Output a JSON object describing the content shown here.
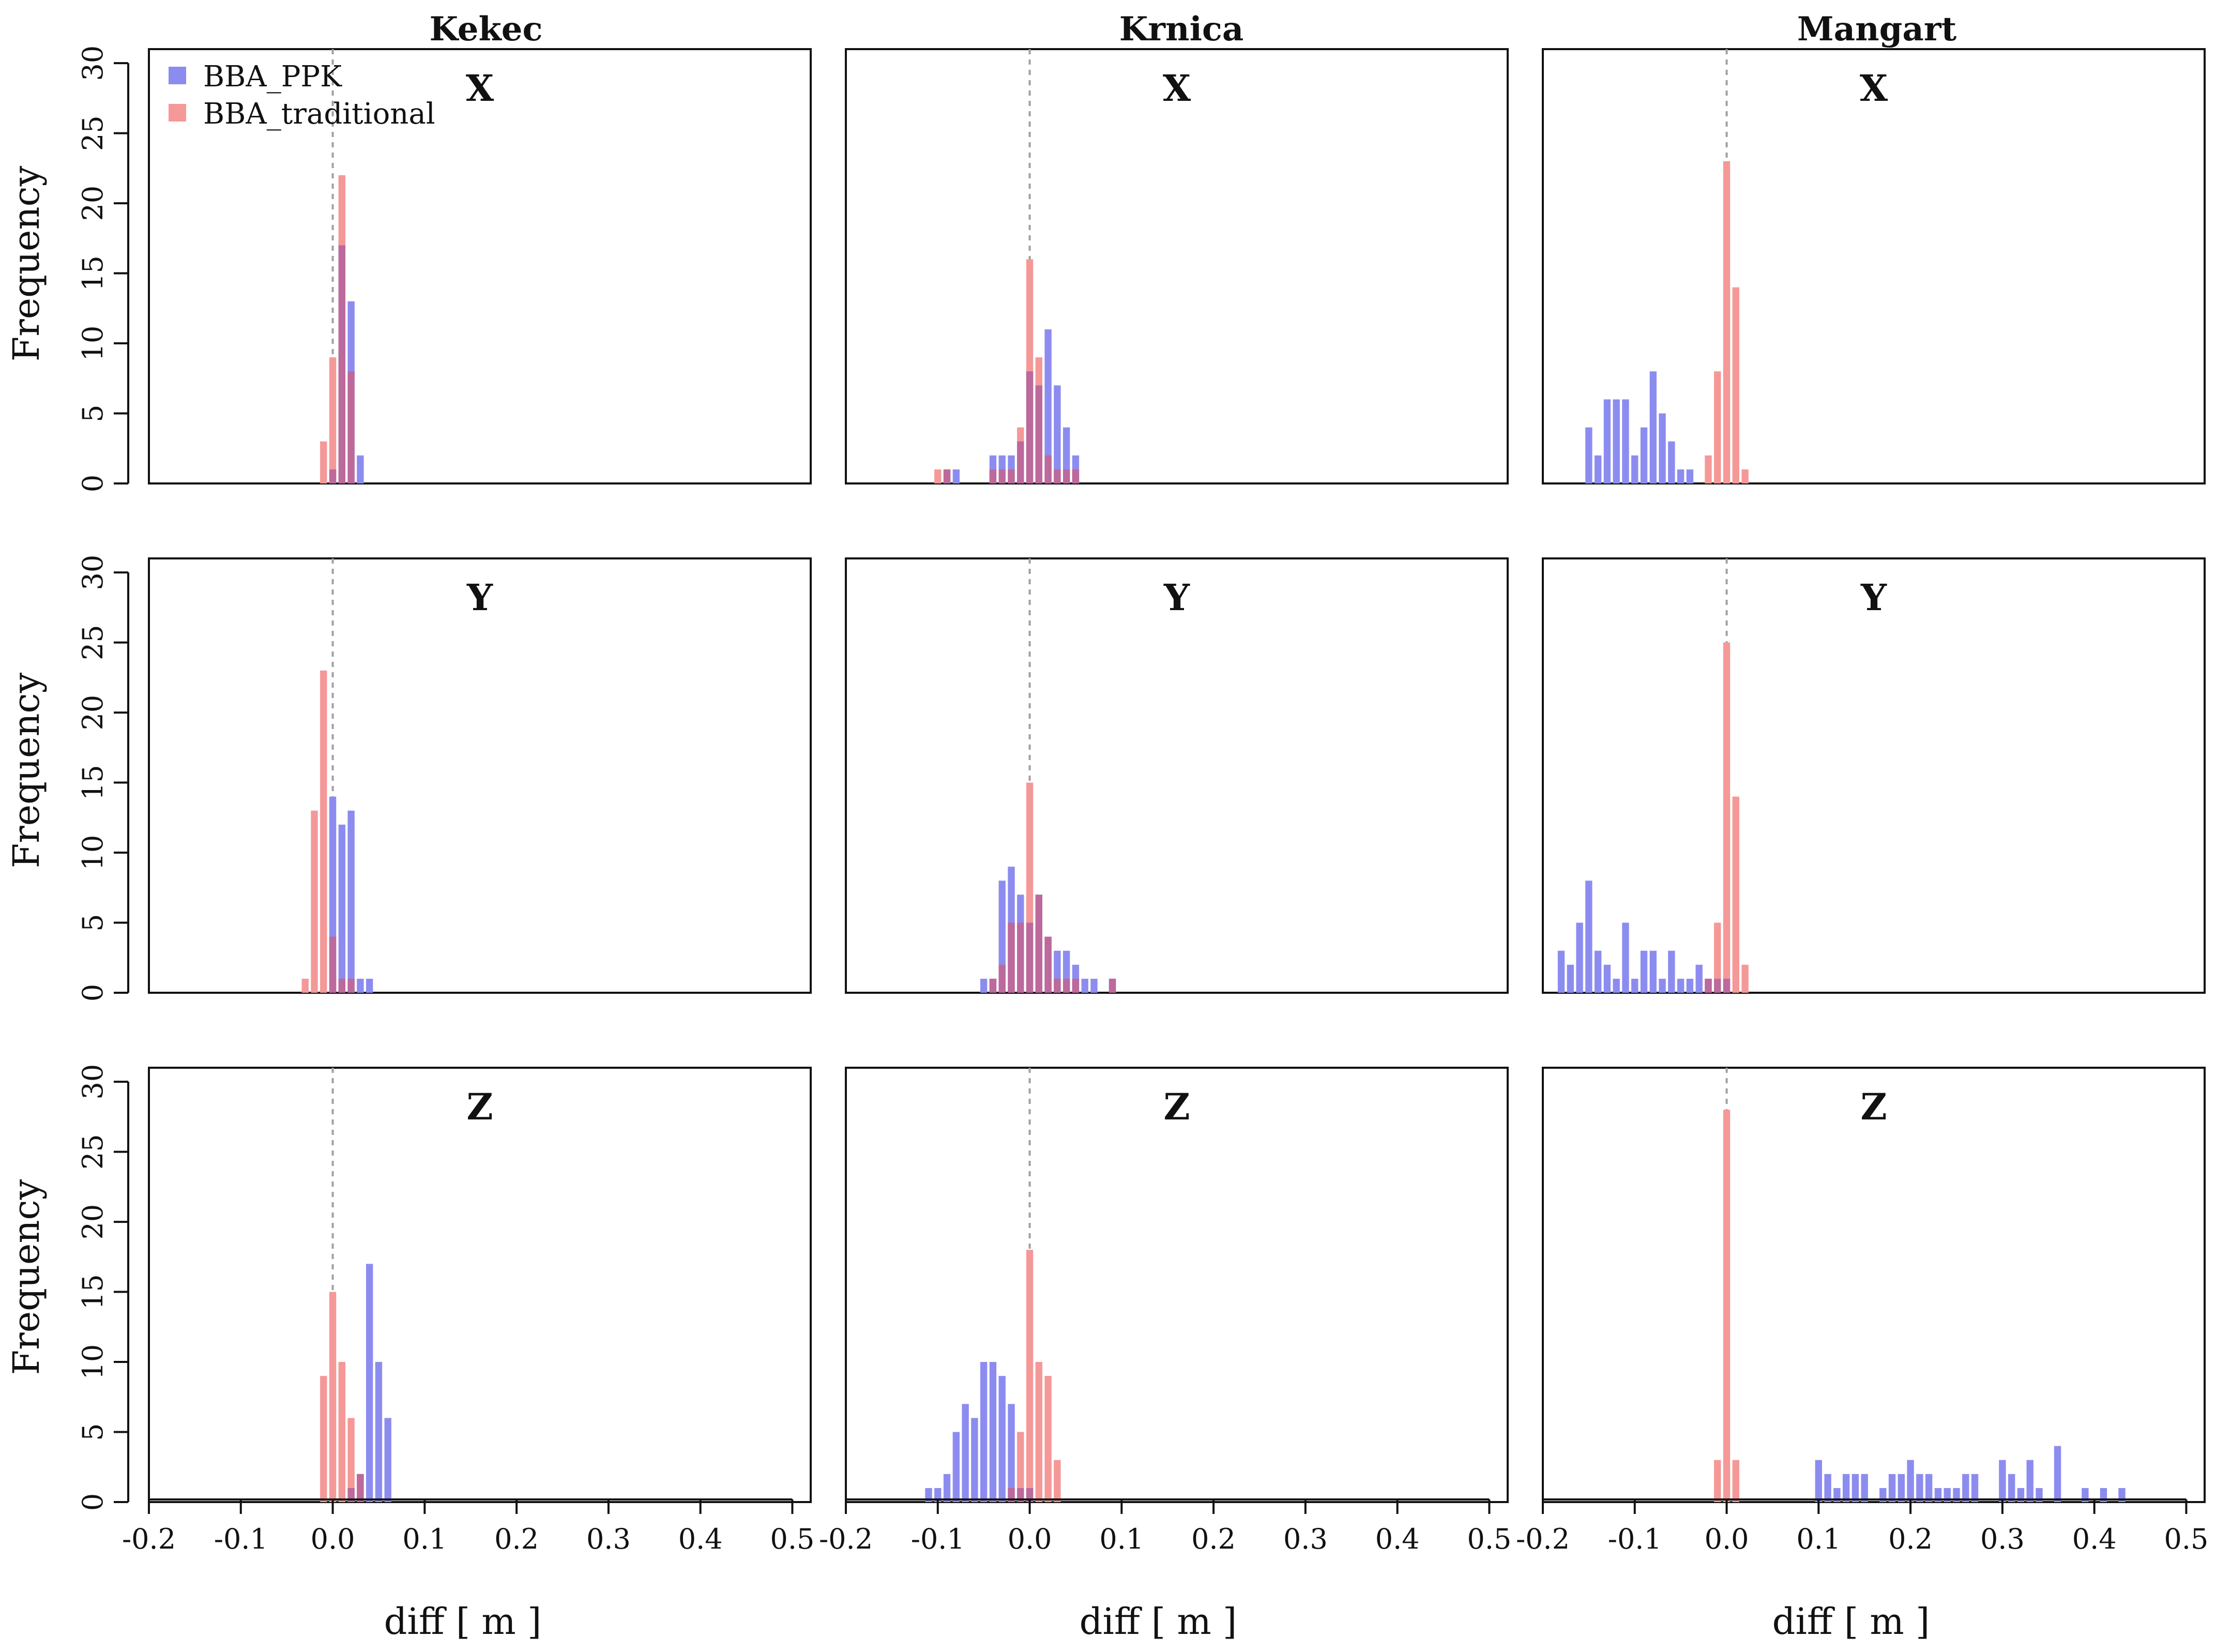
{
  "figure": {
    "ylabel": "Frequency",
    "xlabel": "diff [ m ]",
    "x_ticks": [
      -0.2,
      -0.1,
      0.0,
      0.1,
      0.2,
      0.3,
      0.4,
      0.5
    ],
    "x_tick_labels": [
      "-0.2",
      "-0.1",
      "0.0",
      "0.1",
      "0.2",
      "0.3",
      "0.4",
      "0.5"
    ],
    "y_ticks": [
      0,
      5,
      10,
      15,
      20,
      25,
      30
    ],
    "y_tick_labels": [
      "0",
      "5",
      "10",
      "15",
      "20",
      "25",
      "30"
    ],
    "xlim": [
      -0.2,
      0.52
    ],
    "ylim": [
      0,
      31
    ],
    "bin_width": 0.01,
    "legend": {
      "position": "top-left",
      "entries": [
        {
          "label": "BBA_PPK",
          "color": "#8c8cf0"
        },
        {
          "label": "BBA_traditional",
          "color": "#f59898"
        }
      ]
    },
    "colors": {
      "ppk": "#8c8cf0",
      "traditional": "#f59898",
      "overlap": "#a85a9e",
      "zero_line": "#a0a0a0"
    }
  },
  "columns": [
    "Kekec",
    "Krnica",
    "Mangart"
  ],
  "rows": [
    "X",
    "Y",
    "Z"
  ],
  "chart_data": [
    {
      "type": "histogram",
      "site": "Kekec",
      "component": "X",
      "series": [
        {
          "name": "BBA_PPK",
          "x": [
            0.0,
            0.01,
            0.02,
            0.03
          ],
          "values": [
            1,
            17,
            13,
            2
          ]
        },
        {
          "name": "BBA_traditional",
          "x": [
            -0.01,
            0.0,
            0.01,
            0.02
          ],
          "values": [
            3,
            9,
            22,
            8
          ]
        }
      ]
    },
    {
      "type": "histogram",
      "site": "Krnica",
      "component": "X",
      "series": [
        {
          "name": "BBA_PPK",
          "x": [
            -0.09,
            -0.08,
            -0.04,
            -0.03,
            -0.02,
            -0.01,
            0.0,
            0.01,
            0.02,
            0.03,
            0.04,
            0.05
          ],
          "values": [
            1,
            1,
            2,
            2,
            2,
            3,
            8,
            7,
            11,
            7,
            4,
            2
          ]
        },
        {
          "name": "BBA_traditional",
          "x": [
            -0.1,
            -0.09,
            -0.04,
            -0.03,
            -0.02,
            -0.01,
            0.0,
            0.01,
            0.02,
            0.03,
            0.04,
            0.05
          ],
          "values": [
            1,
            1,
            1,
            1,
            1,
            4,
            16,
            9,
            2,
            1,
            1,
            1
          ]
        }
      ]
    },
    {
      "type": "histogram",
      "site": "Mangart",
      "component": "X",
      "series": [
        {
          "name": "BBA_PPK",
          "x": [
            -0.15,
            -0.14,
            -0.13,
            -0.12,
            -0.11,
            -0.1,
            -0.09,
            -0.08,
            -0.07,
            -0.06,
            -0.05,
            -0.04
          ],
          "values": [
            4,
            2,
            6,
            6,
            6,
            2,
            4,
            8,
            5,
            3,
            1,
            1
          ]
        },
        {
          "name": "BBA_traditional",
          "x": [
            -0.02,
            -0.01,
            0.0,
            0.01,
            0.02
          ],
          "values": [
            2,
            8,
            23,
            14,
            1
          ]
        }
      ]
    },
    {
      "type": "histogram",
      "site": "Kekec",
      "component": "Y",
      "series": [
        {
          "name": "BBA_PPK",
          "x": [
            0.0,
            0.01,
            0.02,
            0.03,
            0.04
          ],
          "values": [
            14,
            12,
            13,
            1,
            1
          ]
        },
        {
          "name": "BBA_traditional",
          "x": [
            -0.03,
            -0.02,
            -0.01,
            0.0,
            0.01,
            0.02
          ],
          "values": [
            1,
            13,
            23,
            4,
            1,
            1
          ]
        }
      ]
    },
    {
      "type": "histogram",
      "site": "Krnica",
      "component": "Y",
      "series": [
        {
          "name": "BBA_PPK",
          "x": [
            -0.05,
            -0.04,
            -0.03,
            -0.02,
            -0.01,
            0.0,
            0.01,
            0.02,
            0.03,
            0.04,
            0.05,
            0.06,
            0.07,
            0.09
          ],
          "values": [
            1,
            1,
            8,
            9,
            7,
            5,
            7,
            4,
            3,
            3,
            2,
            1,
            1,
            1
          ]
        },
        {
          "name": "BBA_traditional",
          "x": [
            -0.04,
            -0.03,
            -0.02,
            -0.01,
            0.0,
            0.01,
            0.02,
            0.03,
            0.04,
            0.05,
            0.09
          ],
          "values": [
            1,
            2,
            5,
            5,
            15,
            7,
            4,
            1,
            1,
            1,
            1
          ]
        }
      ]
    },
    {
      "type": "histogram",
      "site": "Mangart",
      "component": "Y",
      "series": [
        {
          "name": "BBA_PPK",
          "x": [
            -0.18,
            -0.17,
            -0.16,
            -0.15,
            -0.14,
            -0.13,
            -0.12,
            -0.11,
            -0.1,
            -0.09,
            -0.08,
            -0.07,
            -0.06,
            -0.05,
            -0.04,
            -0.03,
            -0.02,
            -0.01,
            0.0
          ],
          "values": [
            3,
            2,
            5,
            8,
            3,
            2,
            1,
            5,
            1,
            3,
            3,
            1,
            3,
            1,
            1,
            2,
            1,
            1,
            1
          ]
        },
        {
          "name": "BBA_traditional",
          "x": [
            -0.02,
            -0.01,
            0.0,
            0.01,
            0.02
          ],
          "values": [
            1,
            5,
            25,
            14,
            2
          ]
        }
      ]
    },
    {
      "type": "histogram",
      "site": "Kekec",
      "component": "Z",
      "series": [
        {
          "name": "BBA_PPK",
          "x": [
            0.02,
            0.03,
            0.04,
            0.05,
            0.06
          ],
          "values": [
            1,
            2,
            17,
            10,
            6
          ]
        },
        {
          "name": "BBA_traditional",
          "x": [
            -0.01,
            0.0,
            0.01,
            0.02,
            0.03
          ],
          "values": [
            9,
            15,
            10,
            6,
            2
          ]
        }
      ]
    },
    {
      "type": "histogram",
      "site": "Krnica",
      "component": "Z",
      "series": [
        {
          "name": "BBA_PPK",
          "x": [
            -0.11,
            -0.1,
            -0.09,
            -0.08,
            -0.07,
            -0.06,
            -0.05,
            -0.04,
            -0.03,
            -0.02,
            -0.01,
            0.0
          ],
          "values": [
            1,
            1,
            2,
            5,
            7,
            6,
            10,
            10,
            9,
            7,
            1,
            1
          ]
        },
        {
          "name": "BBA_traditional",
          "x": [
            -0.02,
            -0.01,
            0.0,
            0.01,
            0.02,
            0.03
          ],
          "values": [
            1,
            5,
            18,
            10,
            9,
            3
          ]
        }
      ]
    },
    {
      "type": "histogram",
      "site": "Mangart",
      "component": "Z",
      "series": [
        {
          "name": "BBA_PPK",
          "x": [
            0.1,
            0.11,
            0.12,
            0.13,
            0.14,
            0.15,
            0.17,
            0.18,
            0.19,
            0.2,
            0.21,
            0.22,
            0.23,
            0.24,
            0.25,
            0.26,
            0.27,
            0.3,
            0.31,
            0.32,
            0.33,
            0.34,
            0.36,
            0.39,
            0.41,
            0.43
          ],
          "values": [
            3,
            2,
            1,
            2,
            2,
            2,
            1,
            2,
            2,
            3,
            2,
            2,
            1,
            1,
            1,
            2,
            2,
            3,
            2,
            1,
            3,
            1,
            4,
            1,
            1,
            1
          ]
        },
        {
          "name": "BBA_traditional",
          "x": [
            -0.01,
            0.0,
            0.01
          ],
          "values": [
            3,
            28,
            3
          ]
        }
      ]
    }
  ]
}
